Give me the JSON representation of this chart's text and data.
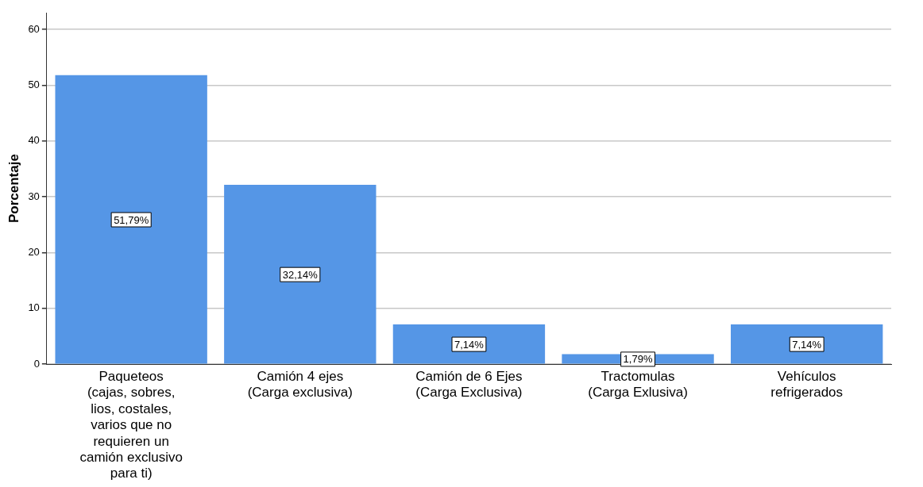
{
  "chart_data": {
    "type": "bar",
    "ylabel": "Porcentaje",
    "categories": [
      "Paqueteos (cajas, sobres, lios, costales, varios que no requieren un camión exclusivo para ti)",
      "Camión 4 ejes (Carga exclusiva)",
      "Camión de 6 Ejes (Carga Exclusiva)",
      "Tractomulas (Carga Exlusiva)",
      "Vehículos refrigerados"
    ],
    "values": [
      51.79,
      32.14,
      7.14,
      1.79,
      7.14
    ],
    "value_labels": [
      "51,79%",
      "32,14%",
      "7,14%",
      "1,79%",
      "7,14%"
    ],
    "color": "#5596e6",
    "ylim": [
      0,
      63
    ],
    "yticks": [
      0,
      10,
      20,
      30,
      40,
      50,
      60
    ],
    "grid": "y",
    "legend": false
  }
}
